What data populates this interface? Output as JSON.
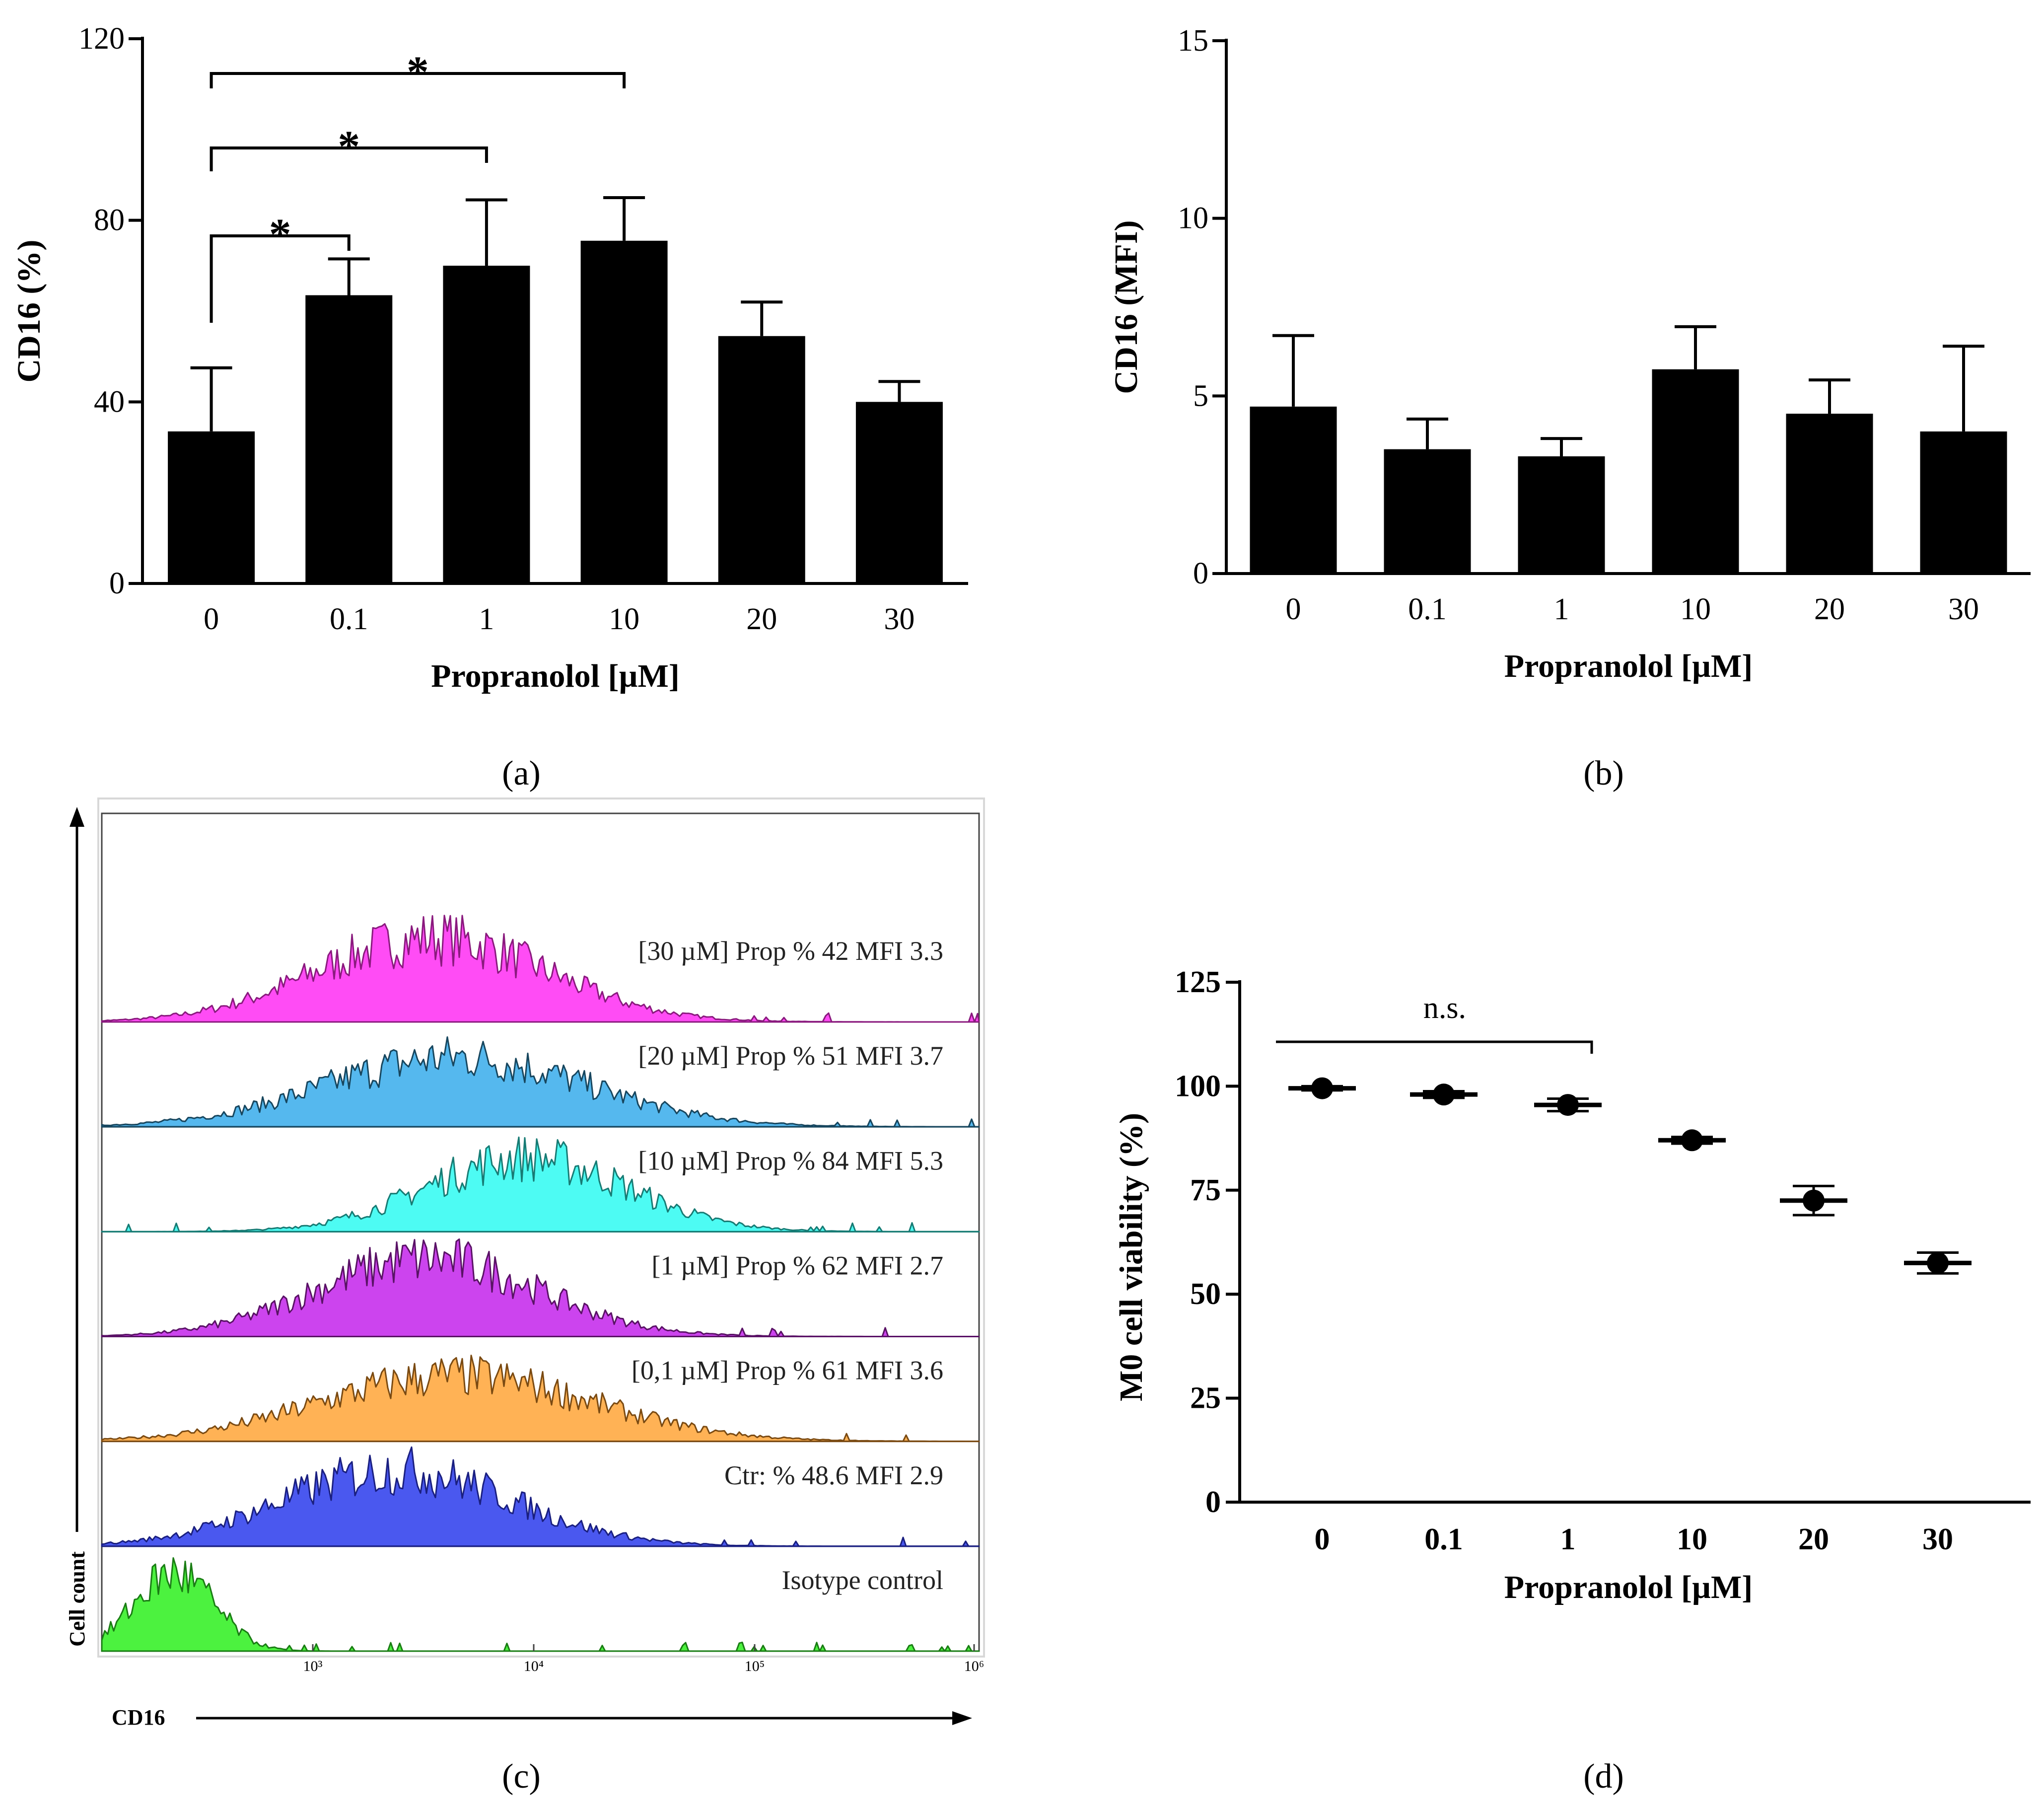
{
  "chart_data": [
    {
      "id": "a",
      "type": "bar",
      "panel_label": "(a)",
      "categories": [
        "0",
        "0.1",
        "1",
        "10",
        "20",
        "30"
      ],
      "values": [
        33.5,
        63.5,
        70,
        75.5,
        54.5,
        40
      ],
      "errors": [
        14,
        8,
        14.5,
        9.5,
        7.5,
        4.5
      ],
      "xlabel": "Propranolol [µM]",
      "ylabel": "CD16 (%)",
      "ylim": [
        0,
        120
      ],
      "yticks": [
        "0",
        "40",
        "80",
        "120"
      ],
      "significance": [
        {
          "from": "0",
          "to": "0.1",
          "label": "*"
        },
        {
          "from": "0",
          "to": "1",
          "label": "*"
        },
        {
          "from": "0",
          "to": "10",
          "label": "*"
        }
      ]
    },
    {
      "id": "b",
      "type": "bar",
      "panel_label": "(b)",
      "categories": [
        "0",
        "0.1",
        "1",
        "10",
        "20",
        "30"
      ],
      "values": [
        4.7,
        3.5,
        3.3,
        5.75,
        4.5,
        4.0
      ],
      "errors": [
        2.0,
        0.85,
        0.5,
        1.2,
        0.95,
        2.4
      ],
      "xlabel": "Propranolol [µM]",
      "ylabel": "CD16 (MFI)",
      "ylim": [
        0,
        15
      ],
      "yticks": [
        "0",
        "5",
        "10",
        "15"
      ]
    },
    {
      "id": "c",
      "type": "histogram",
      "panel_label": "(c)",
      "xlabel": "CD16",
      "ylabel": "Cell count",
      "xticks": [
        "10³",
        "10⁴",
        "10⁵",
        "10⁶"
      ],
      "traces": [
        {
          "label": "[30 µM] Prop  % 42 MFI 3.3",
          "fill": "#ff4cf5",
          "line": "#8a1a7e"
        },
        {
          "label": "[20 µM] Prop  % 51 MFI 3.7",
          "fill": "#55b8ee",
          "line": "#17465e"
        },
        {
          "label": "[10 µM] Prop  % 84 MFI 5.3",
          "fill": "#4dfbf3",
          "line": "#177b74"
        },
        {
          "label": "[1 µM] Prop  % 62 MFI 2.7",
          "fill": "#cc44ee",
          "line": "#5a1266"
        },
        {
          "label": "[0,1 µM] Prop  % 61 MFI 3.6",
          "fill": "#ffb255",
          "line": "#7a4a12"
        },
        {
          "label": "Ctr: % 48.6 MFI 2.9",
          "fill": "#4a58ef",
          "line": "#1a1f80"
        },
        {
          "label": "Isotype control",
          "fill": "#4cf23f",
          "line": "#1a7d14"
        }
      ]
    },
    {
      "id": "d",
      "type": "scatter",
      "panel_label": "(d)",
      "categories": [
        "0",
        "0.1",
        "1",
        "10",
        "20",
        "30"
      ],
      "values": [
        99.5,
        98,
        95.5,
        87,
        72.5,
        57.5
      ],
      "errors": [
        0.5,
        0.8,
        1.5,
        0.8,
        3.5,
        2.5
      ],
      "xlabel": "Propranolol [µM]",
      "ylabel": "M0 cell viability (%)",
      "ylim": [
        0,
        125
      ],
      "yticks": [
        "0",
        "25",
        "50",
        "75",
        "100",
        "125"
      ],
      "annotation": {
        "from": "0",
        "to": "1",
        "label": "n.s."
      }
    }
  ]
}
